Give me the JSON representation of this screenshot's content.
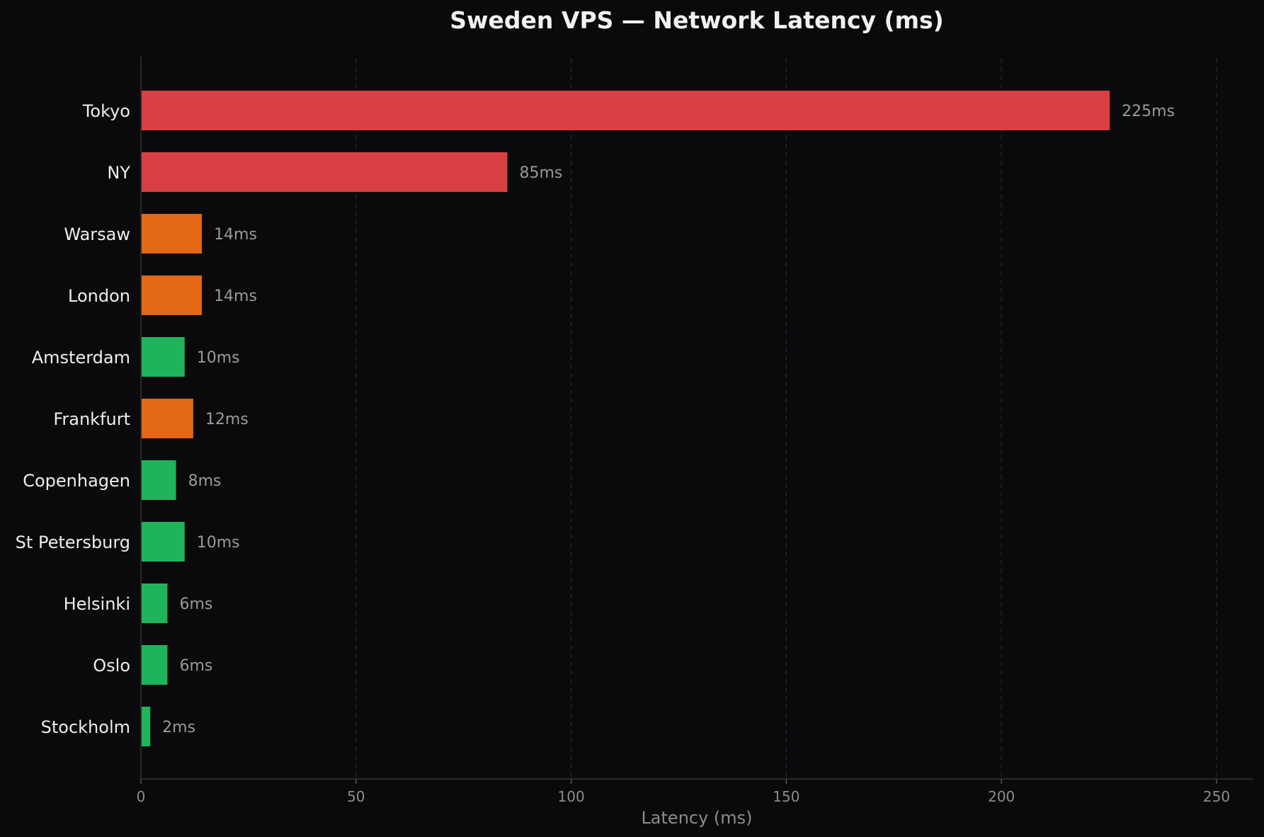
{
  "chart_data": {
    "type": "bar",
    "orientation": "horizontal",
    "title": "Sweden VPS — Network Latency (ms)",
    "xlabel": "Latency (ms)",
    "ylabel": "",
    "xlim": [
      0,
      258
    ],
    "xticks": [
      0,
      50,
      100,
      150,
      200,
      250
    ],
    "grid": "vertical dashed",
    "value_suffix": "ms",
    "categories": [
      "Tokyo",
      "NY",
      "Warsaw",
      "London",
      "Amsterdam",
      "Frankfurt",
      "Copenhagen",
      "St Petersburg",
      "Helsinki",
      "Oslo",
      "Stockholm"
    ],
    "values": [
      225,
      85,
      14,
      14,
      10,
      12,
      8,
      10,
      6,
      6,
      2
    ],
    "value_labels": [
      "225ms",
      "85ms",
      "14ms",
      "14ms",
      "10ms",
      "12ms",
      "8ms",
      "10ms",
      "6ms",
      "6ms",
      "2ms"
    ],
    "bar_colors": [
      "#d94043",
      "#d94043",
      "#e36715",
      "#e36715",
      "#20b45a",
      "#e36715",
      "#20b45a",
      "#20b45a",
      "#20b45a",
      "#20b45a",
      "#20b45a"
    ]
  }
}
